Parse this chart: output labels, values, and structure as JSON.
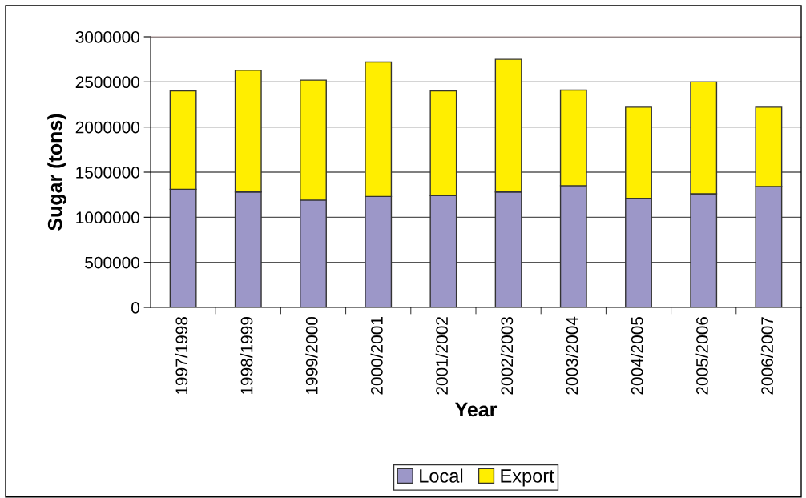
{
  "chart_data": {
    "type": "bar",
    "stacked": true,
    "xlabel": "Year",
    "ylabel": "Sugar (tons)",
    "categories": [
      "1997/1998",
      "1998/1999",
      "1999/2000",
      "2000/2001",
      "2001/2002",
      "2002/2003",
      "2003/2004",
      "2004/2005",
      "2005/2006",
      "2006/2007"
    ],
    "series": [
      {
        "name": "Local",
        "color": "#9c97c8",
        "values": [
          1310000,
          1280000,
          1190000,
          1230000,
          1240000,
          1280000,
          1350000,
          1210000,
          1260000,
          1340000
        ]
      },
      {
        "name": "Export",
        "color": "#ffee00",
        "values": [
          1090000,
          1350000,
          1330000,
          1490000,
          1160000,
          1470000,
          1060000,
          1010000,
          1240000,
          880000
        ]
      }
    ],
    "ylim": [
      0,
      3000000
    ],
    "yticks": [
      0,
      500000,
      1000000,
      1500000,
      2000000,
      2500000,
      3000000
    ],
    "grid": "y",
    "legend": "bottom"
  }
}
